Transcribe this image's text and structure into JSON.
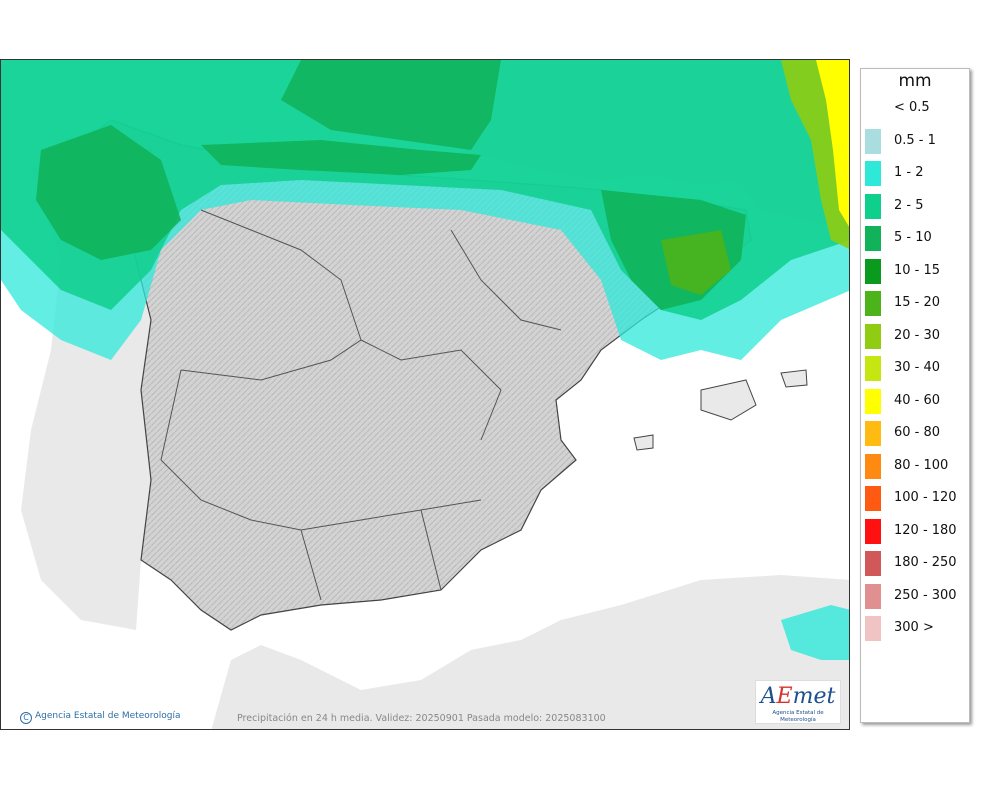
{
  "legend": {
    "unit": "mm",
    "items": [
      {
        "label": "< 0.5",
        "color": "#ffffff"
      },
      {
        "label": "0.5 - 1",
        "color": "#a9dde0"
      },
      {
        "label": "1 - 2",
        "color": "#2ee8d8"
      },
      {
        "label": "2 - 5",
        "color": "#0fcf8c"
      },
      {
        "label": "5 - 10",
        "color": "#10b25a"
      },
      {
        "label": "10 - 15",
        "color": "#0a9a1e"
      },
      {
        "label": "15 - 20",
        "color": "#4cb31a"
      },
      {
        "label": "20 - 30",
        "color": "#8fcc12"
      },
      {
        "label": "30 - 40",
        "color": "#c6e612"
      },
      {
        "label": "40 - 60",
        "color": "#ffff00"
      },
      {
        "label": "60 - 80",
        "color": "#ffbb11"
      },
      {
        "label": "80 - 100",
        "color": "#ff8a11"
      },
      {
        "label": "100 - 120",
        "color": "#ff5a11"
      },
      {
        "label": "120 - 180",
        "color": "#ff1111"
      },
      {
        "label": "180 - 250",
        "color": "#d05858"
      },
      {
        "label": "250 - 300",
        "color": "#e09090"
      },
      {
        "label": "300 >",
        "color": "#f0c4c4"
      }
    ]
  },
  "credit": "Agencia Estatal de Meteorología",
  "caption": "Precipitación en 24 h media. Validez: 20250901 Pasada modelo: 2025083100",
  "logo": {
    "word_a": "A",
    "word_e": "E",
    "word_rest": "met",
    "subtitle": "Agencia Estatal de Meteorología"
  },
  "map": {
    "sea_color": "#ffffff",
    "land_color": "#e9e9e9",
    "peninsula_color": "#cfcfcf"
  }
}
